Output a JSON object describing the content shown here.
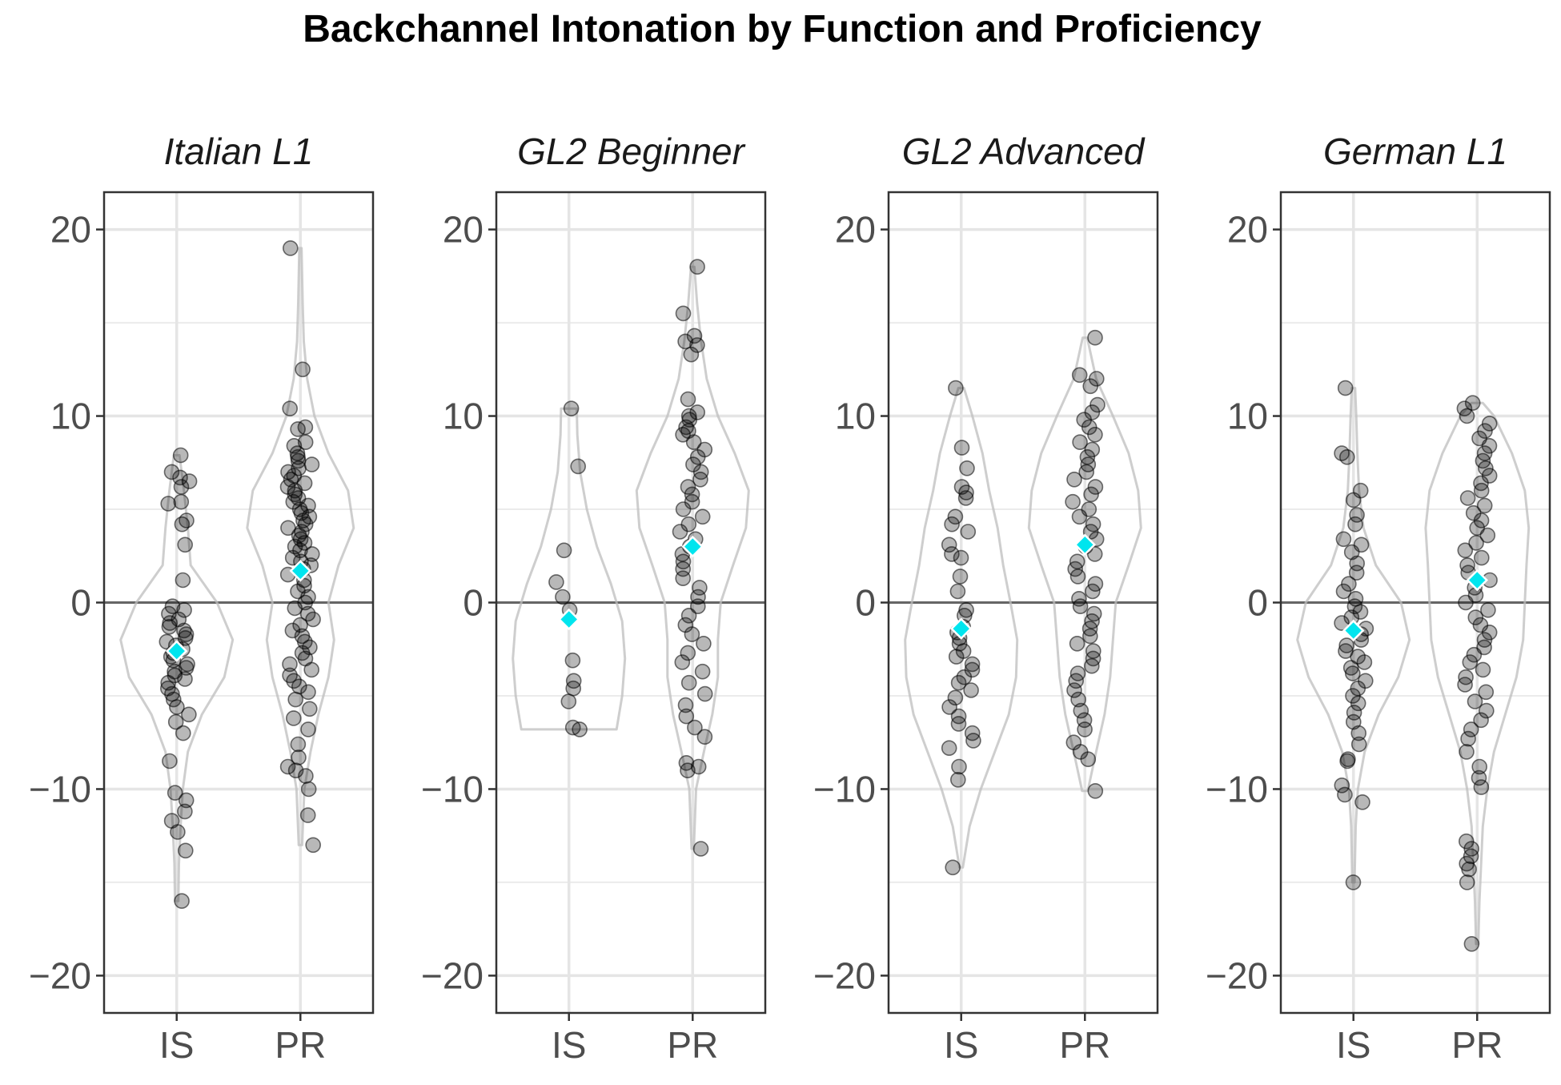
{
  "chart_data": {
    "type": "violin",
    "title": "Backchannel Intonation by Function and Proficiency",
    "xlabel": "",
    "ylabel": "",
    "ylim": [
      -22,
      22
    ],
    "y_ticks": [
      -20,
      -10,
      0,
      10,
      20
    ],
    "categories": [
      "IS",
      "PR"
    ],
    "grid": true,
    "reference_line": 0,
    "mean_marker_color": "#00E5EE",
    "point_color": "#000000",
    "violin_color": "#BDBDBD",
    "panels": [
      {
        "name": "Italian L1",
        "groups": [
          {
            "category": "IS",
            "mean": -2.6,
            "min": -16.0,
            "max": 7.9,
            "violin": [
              [
                -16,
                0.03
              ],
              [
                -14,
                0.04
              ],
              [
                -12,
                0.07
              ],
              [
                -10,
                0.11
              ],
              [
                -8,
                0.2
              ],
              [
                -6,
                0.45
              ],
              [
                -4,
                0.85
              ],
              [
                -2,
                1.0
              ],
              [
                0,
                0.72
              ],
              [
                2,
                0.25
              ],
              [
                4,
                0.2
              ],
              [
                6,
                0.13
              ],
              [
                7.9,
                0.05
              ]
            ],
            "points": [
              7.9,
              7.0,
              6.7,
              6.5,
              6.2,
              5.4,
              5.3,
              4.4,
              4.2,
              3.1,
              1.2,
              -0.2,
              -0.4,
              -0.6,
              -0.9,
              -1.1,
              -1.3,
              -1.5,
              -1.7,
              -1.9,
              -2.1,
              -2.3,
              -2.5,
              -2.7,
              -2.9,
              -3.1,
              -3.3,
              -3.5,
              -3.7,
              -3.9,
              -4.1,
              -4.3,
              -4.6,
              -4.9,
              -5.2,
              -5.6,
              -6.0,
              -6.4,
              -7.0,
              -8.5,
              -10.2,
              -10.6,
              -11.2,
              -11.7,
              -12.3,
              -13.3,
              -16.0
            ]
          },
          {
            "category": "PR",
            "mean": 1.7,
            "min": -13.0,
            "max": 19.0,
            "violin": [
              [
                -13,
                0.03
              ],
              [
                -10,
                0.07
              ],
              [
                -8,
                0.18
              ],
              [
                -6,
                0.32
              ],
              [
                -4,
                0.5
              ],
              [
                -2,
                0.6
              ],
              [
                0,
                0.5
              ],
              [
                2,
                0.68
              ],
              [
                4,
                0.95
              ],
              [
                6,
                0.85
              ],
              [
                8,
                0.5
              ],
              [
                10,
                0.25
              ],
              [
                12,
                0.12
              ],
              [
                14,
                0.06
              ],
              [
                16,
                0.04
              ],
              [
                19,
                0.02
              ]
            ],
            "points": [
              19.0,
              12.5,
              10.4,
              9.4,
              9.3,
              8.6,
              8.4,
              8.0,
              7.8,
              7.6,
              7.4,
              7.2,
              7.0,
              6.8,
              6.6,
              6.4,
              6.2,
              6.0,
              5.8,
              5.6,
              5.4,
              5.2,
              5.0,
              4.8,
              4.6,
              4.4,
              4.2,
              4.0,
              3.8,
              3.6,
              3.4,
              3.2,
              3.0,
              2.8,
              2.6,
              2.4,
              2.2,
              2.0,
              1.8,
              1.5,
              1.2,
              0.9,
              0.6,
              0.3,
              0.0,
              -0.3,
              -0.6,
              -0.9,
              -1.2,
              -1.5,
              -1.8,
              -2.1,
              -2.4,
              -2.7,
              -3.0,
              -3.3,
              -3.6,
              -3.9,
              -4.2,
              -4.5,
              -4.8,
              -5.2,
              -5.7,
              -6.2,
              -6.8,
              -7.6,
              -8.3,
              -8.8,
              -9.0,
              -9.3,
              -10.0,
              -11.4,
              -13.0
            ]
          }
        ]
      },
      {
        "name": "GL2 Beginner",
        "groups": [
          {
            "category": "IS",
            "mean": -0.9,
            "min": -6.8,
            "max": 10.4,
            "violin": [
              [
                -6.8,
                0.85
              ],
              [
                -5,
                0.95
              ],
              [
                -3,
                1.0
              ],
              [
                -1,
                0.95
              ],
              [
                1,
                0.75
              ],
              [
                3,
                0.5
              ],
              [
                5,
                0.32
              ],
              [
                7,
                0.2
              ],
              [
                9,
                0.15
              ],
              [
                10.4,
                0.14
              ]
            ],
            "points": [
              10.4,
              7.3,
              2.8,
              1.1,
              0.3,
              -0.4,
              -3.1,
              -4.2,
              -4.6,
              -5.3,
              -6.7,
              -6.8
            ]
          },
          {
            "category": "PR",
            "mean": 3.0,
            "min": -13.2,
            "max": 18.0,
            "violin": [
              [
                -13.2,
                0.02
              ],
              [
                -10,
                0.06
              ],
              [
                -8,
                0.2
              ],
              [
                -6,
                0.35
              ],
              [
                -4,
                0.45
              ],
              [
                -2,
                0.45
              ],
              [
                0,
                0.5
              ],
              [
                2,
                0.72
              ],
              [
                4,
                0.95
              ],
              [
                6,
                1.0
              ],
              [
                8,
                0.75
              ],
              [
                10,
                0.45
              ],
              [
                12,
                0.25
              ],
              [
                14,
                0.15
              ],
              [
                16,
                0.08
              ],
              [
                18,
                0.03
              ]
            ],
            "points": [
              18.0,
              15.5,
              14.3,
              14.0,
              13.8,
              13.3,
              10.9,
              10.2,
              10.0,
              9.8,
              9.4,
              9.2,
              9.0,
              8.6,
              8.2,
              7.8,
              7.4,
              7.0,
              6.6,
              6.2,
              5.8,
              5.4,
              5.0,
              4.6,
              4.2,
              3.8,
              3.4,
              3.0,
              2.6,
              2.2,
              1.8,
              1.3,
              0.8,
              0.3,
              -0.2,
              -0.7,
              -1.2,
              -1.7,
              -2.2,
              -2.7,
              -3.2,
              -3.7,
              -4.3,
              -4.9,
              -5.5,
              -6.1,
              -6.7,
              -7.2,
              -8.6,
              -8.8,
              -9.0,
              -13.2
            ]
          }
        ]
      },
      {
        "name": "GL2 Advanced",
        "groups": [
          {
            "category": "IS",
            "mean": -1.4,
            "min": -14.2,
            "max": 11.5,
            "violin": [
              [
                -14.2,
                0.03
              ],
              [
                -12,
                0.15
              ],
              [
                -10,
                0.35
              ],
              [
                -8,
                0.6
              ],
              [
                -6,
                0.85
              ],
              [
                -4,
                0.98
              ],
              [
                -2,
                1.0
              ],
              [
                0,
                0.88
              ],
              [
                2,
                0.75
              ],
              [
                4,
                0.65
              ],
              [
                6,
                0.5
              ],
              [
                8,
                0.38
              ],
              [
                10,
                0.2
              ],
              [
                11.5,
                0.05
              ]
            ],
            "points": [
              11.5,
              8.3,
              7.2,
              6.2,
              5.9,
              5.6,
              4.6,
              4.2,
              3.8,
              3.1,
              2.6,
              2.4,
              1.4,
              0.6,
              -0.4,
              -0.7,
              -1.3,
              -1.6,
              -1.9,
              -2.2,
              -2.6,
              -2.9,
              -3.3,
              -3.6,
              -4.0,
              -4.3,
              -4.7,
              -5.1,
              -5.6,
              -6.1,
              -6.5,
              -7.0,
              -7.4,
              -7.8,
              -8.8,
              -9.5,
              -14.2
            ]
          },
          {
            "category": "PR",
            "mean": 3.1,
            "min": -10.1,
            "max": 14.2,
            "violin": [
              [
                -10.1,
                0.05
              ],
              [
                -8,
                0.2
              ],
              [
                -6,
                0.35
              ],
              [
                -4,
                0.45
              ],
              [
                -2,
                0.5
              ],
              [
                0,
                0.55
              ],
              [
                2,
                0.78
              ],
              [
                4,
                1.0
              ],
              [
                6,
                0.95
              ],
              [
                8,
                0.78
              ],
              [
                10,
                0.5
              ],
              [
                12,
                0.2
              ],
              [
                14.2,
                0.04
              ]
            ],
            "points": [
              14.2,
              12.2,
              12.0,
              11.6,
              10.6,
              10.2,
              9.8,
              9.4,
              9.0,
              8.6,
              8.2,
              7.8,
              7.4,
              7.0,
              6.6,
              6.2,
              5.8,
              5.4,
              5.0,
              4.6,
              4.2,
              3.8,
              3.4,
              3.0,
              2.6,
              2.2,
              1.8,
              1.4,
              1.0,
              0.6,
              0.2,
              -0.2,
              -0.6,
              -1.0,
              -1.4,
              -1.8,
              -2.2,
              -2.6,
              -3.0,
              -3.4,
              -3.8,
              -4.2,
              -4.7,
              -5.2,
              -5.8,
              -6.3,
              -6.8,
              -7.5,
              -8.0,
              -8.4,
              -10.1
            ]
          }
        ]
      },
      {
        "name": "German L1",
        "groups": [
          {
            "category": "IS",
            "mean": -1.5,
            "min": -15.0,
            "max": 11.5,
            "violin": [
              [
                -15,
                0.02
              ],
              [
                -12,
                0.04
              ],
              [
                -10,
                0.08
              ],
              [
                -8,
                0.2
              ],
              [
                -6,
                0.45
              ],
              [
                -4,
                0.8
              ],
              [
                -2,
                1.0
              ],
              [
                0,
                0.85
              ],
              [
                2,
                0.4
              ],
              [
                4,
                0.18
              ],
              [
                6,
                0.1
              ],
              [
                8,
                0.07
              ],
              [
                10,
                0.05
              ],
              [
                11.5,
                0.03
              ]
            ],
            "points": [
              11.5,
              8.0,
              7.8,
              6.0,
              5.5,
              4.7,
              4.2,
              3.4,
              3.1,
              2.7,
              2.1,
              1.6,
              1.0,
              0.6,
              0.2,
              -0.2,
              -0.5,
              -0.8,
              -1.1,
              -1.4,
              -1.7,
              -2.0,
              -2.3,
              -2.6,
              -2.9,
              -3.2,
              -3.5,
              -3.8,
              -4.2,
              -4.6,
              -5.0,
              -5.4,
              -5.9,
              -6.4,
              -7.0,
              -7.6,
              -8.4,
              -8.5,
              -9.8,
              -10.3,
              -10.7,
              -15.0
            ]
          },
          {
            "category": "PR",
            "mean": 1.2,
            "min": -18.3,
            "max": 10.7,
            "violin": [
              [
                -18.3,
                0.02
              ],
              [
                -16,
                0.04
              ],
              [
                -14,
                0.07
              ],
              [
                -12,
                0.1
              ],
              [
                -10,
                0.18
              ],
              [
                -8,
                0.3
              ],
              [
                -6,
                0.5
              ],
              [
                -4,
                0.7
              ],
              [
                -2,
                0.82
              ],
              [
                0,
                0.85
              ],
              [
                2,
                0.88
              ],
              [
                4,
                0.92
              ],
              [
                6,
                0.85
              ],
              [
                8,
                0.62
              ],
              [
                10,
                0.3
              ],
              [
                10.7,
                0.1
              ]
            ],
            "points": [
              10.7,
              10.4,
              10.0,
              9.6,
              9.2,
              8.8,
              8.4,
              8.0,
              7.6,
              7.2,
              6.8,
              6.4,
              6.0,
              5.6,
              5.2,
              4.8,
              4.4,
              4.0,
              3.6,
              3.2,
              2.8,
              2.4,
              2.0,
              1.6,
              1.2,
              0.8,
              0.4,
              0.0,
              -0.4,
              -0.8,
              -1.2,
              -1.6,
              -2.0,
              -2.4,
              -2.8,
              -3.2,
              -3.6,
              -4.0,
              -4.4,
              -4.8,
              -5.3,
              -5.8,
              -6.3,
              -6.8,
              -7.3,
              -8.0,
              -8.8,
              -9.4,
              -9.9,
              -12.8,
              -13.2,
              -13.6,
              -14.0,
              -14.3,
              -15.0,
              -18.3
            ]
          }
        ]
      }
    ]
  }
}
